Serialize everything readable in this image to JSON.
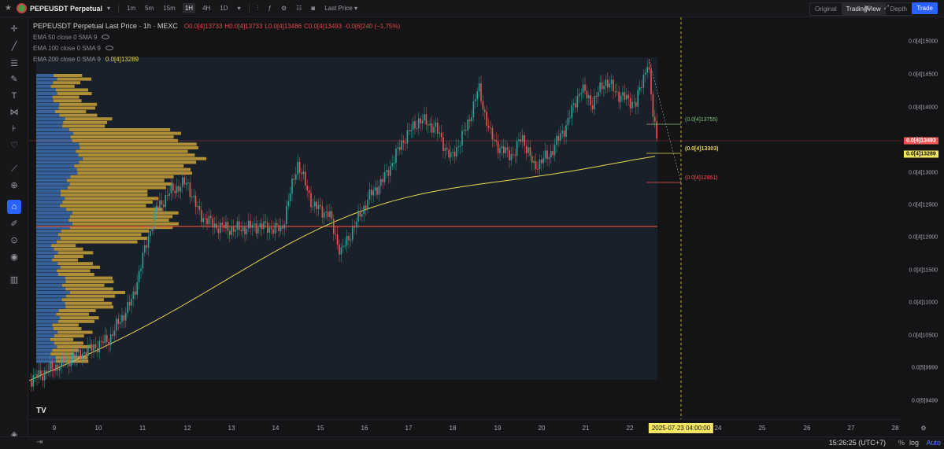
{
  "topbar": {
    "symbol": "PEPEUSDT Perpetual",
    "intervals": [
      "1m",
      "5m",
      "15m",
      "1H",
      "4H",
      "1D"
    ],
    "active_interval": "1H",
    "price_type": "Last Price ▾",
    "views": [
      "Original",
      "TradingView",
      "Depth"
    ],
    "active_view": "TradingView",
    "trade_label": "Trade"
  },
  "legend": {
    "title": "PEPEUSDT Perpetual Last Price · 1h · MEXC",
    "open": "O0.0[4]13733",
    "high": "H0.0[4]13733",
    "low": "L0.0[4]13486",
    "close": "C0.0[4]13493",
    "change": "-0.0[6]240 (−1.75%)",
    "ema50": "EMA 50 close 0 SMA 9",
    "ema100": "EMA 100 close 0 SMA 9",
    "ema200": "EMA 200 close 0 SMA 9",
    "ema200_value": "0.0[4]13289"
  },
  "price_axis": {
    "ticks": [
      "0.0[4]15000",
      "0.0[4]14500",
      "0.0[4]14000",
      "0.0[4]13500",
      "0.0[4]13000",
      "0.0[4]12500",
      "0.0[4]12000",
      "0.0[4]11500",
      "0.0[4]11000",
      "0.0[4]10500",
      "0.0[5]9999",
      "0.0[5]9499"
    ],
    "current_price": "0.0[4]13493",
    "ema_price": "0.0[4]13289"
  },
  "annotations": {
    "tp": "(0.0[4]13755)",
    "entry": "(0.0[4]13303)",
    "sl": "(0.0[4]12851)"
  },
  "time_axis": {
    "ticks": [
      "9",
      "10",
      "11",
      "12",
      "13",
      "14",
      "15",
      "16",
      "17",
      "18",
      "19",
      "20",
      "21",
      "22",
      "24",
      "25",
      "26",
      "27",
      "28"
    ],
    "cursor_label": "2025-07-23    04:00:00"
  },
  "status": {
    "clock": "15:26:25 (UTC+7)",
    "pct": "%",
    "log": "log",
    "auto": "Auto"
  },
  "colors": {
    "up": "#26a69a",
    "down": "#ef5350",
    "ema": "#e6d84f",
    "vp_up": "#3d6fb0",
    "vp_down": "#c9a23a",
    "poc": "#d9483b"
  }
}
